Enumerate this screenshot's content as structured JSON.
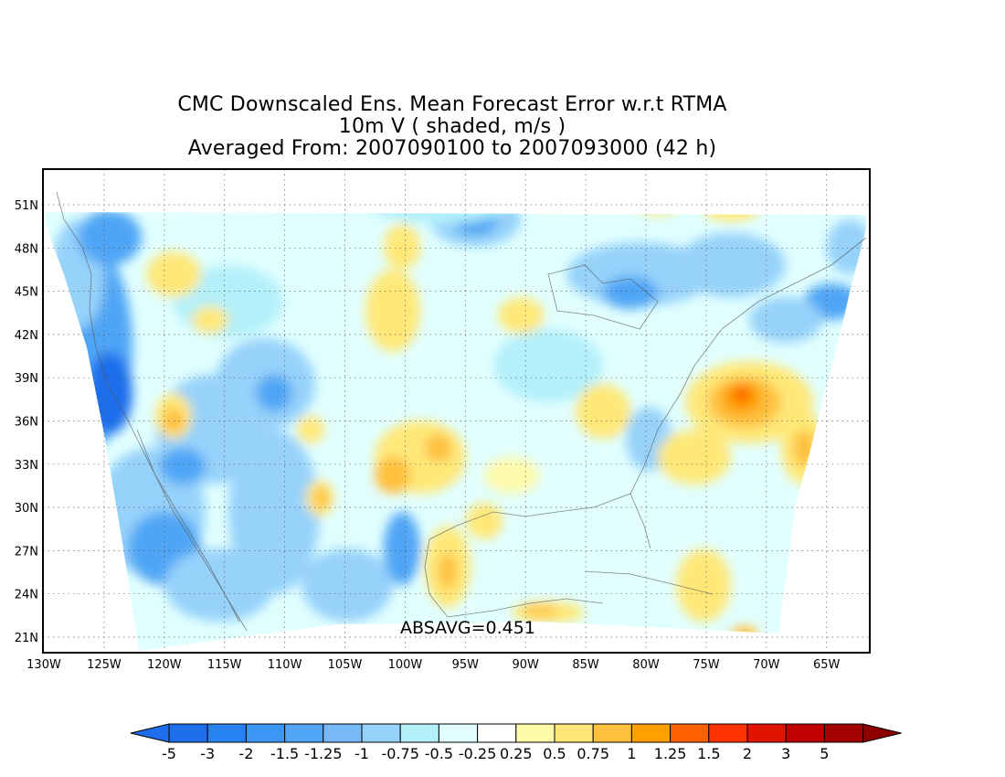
{
  "title": {
    "line1": "CMC Downscaled Ens. Mean Forecast Error w.r.t RTMA",
    "line2": "10m V ( shaded, m/s )",
    "line3": "Averaged From: 2007090100 to 2007093000 (42 h)"
  },
  "annotation": {
    "absavg": "ABSAVG=0.451"
  },
  "axes": {
    "lat_labels": [
      "51N",
      "48N",
      "45N",
      "42N",
      "39N",
      "36N",
      "33N",
      "30N",
      "27N",
      "24N",
      "21N"
    ],
    "lon_labels": [
      "130W",
      "125W",
      "120W",
      "115W",
      "110W",
      "105W",
      "100W",
      "95W",
      "90W",
      "85W",
      "80W",
      "75W",
      "70W",
      "65W"
    ]
  },
  "colorbar": {
    "labels": [
      "-5",
      "-3",
      "-2",
      "-1.5",
      "-1.25",
      "-1",
      "-0.75",
      "-0.5",
      "-0.25",
      "0.25",
      "0.5",
      "0.75",
      "1",
      "1.25",
      "1.5",
      "2",
      "3",
      "5"
    ],
    "colors": [
      "#1e6eeb",
      "#2882f0",
      "#3c96f5",
      "#50a5f5",
      "#78b9fa",
      "#96d2fa",
      "#b4f0fa",
      "#e1ffff",
      "#ffffff",
      "#fffaaa",
      "#ffe878",
      "#ffc03c",
      "#ffa000",
      "#ff6000",
      "#ff3200",
      "#e11400",
      "#c00000",
      "#a50000"
    ]
  },
  "palette": {
    "neg_strong": "#1e6eeb",
    "neg_mid": "#50a5f5",
    "neg_light": "#96d2fa",
    "neg_faint": "#b4f0fa",
    "neg_pale": "#e1ffff",
    "pos_faint": "#fffaaa",
    "pos_light": "#ffe878",
    "pos_mid": "#ffc03c",
    "pos_strong": "#ffa000",
    "pos_hot": "#ff6000",
    "pos_max": "#ff3200"
  }
}
